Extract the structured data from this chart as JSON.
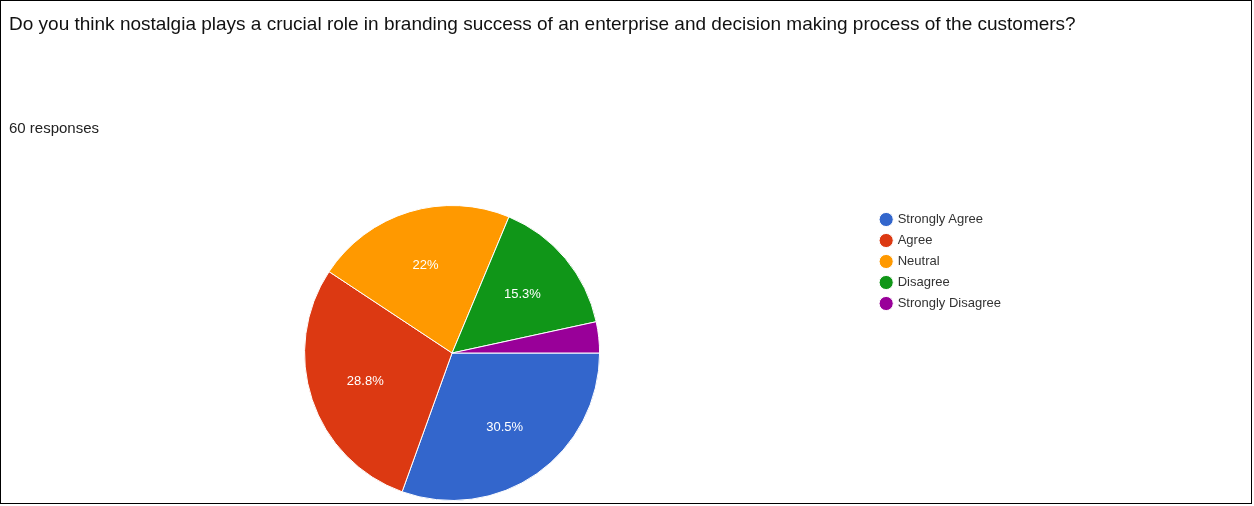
{
  "chart_data": {
    "type": "pie",
    "title": "Do you think nostalgia plays a crucial role in branding success of an enterprise and decision making process of the customers?",
    "subtitle": "60 responses",
    "categories": [
      "Strongly Agree",
      "Agree",
      "Neutral",
      "Disagree",
      "Strongly Disagree"
    ],
    "values": [
      30.5,
      28.8,
      22,
      15.3,
      3.4
    ],
    "colors": [
      "#3366cc",
      "#dc3912",
      "#ff9900",
      "#109618",
      "#990099"
    ],
    "value_labels": [
      "30.5%",
      "28.8%",
      "22%",
      "15.3%",
      null
    ],
    "legend": "right"
  }
}
